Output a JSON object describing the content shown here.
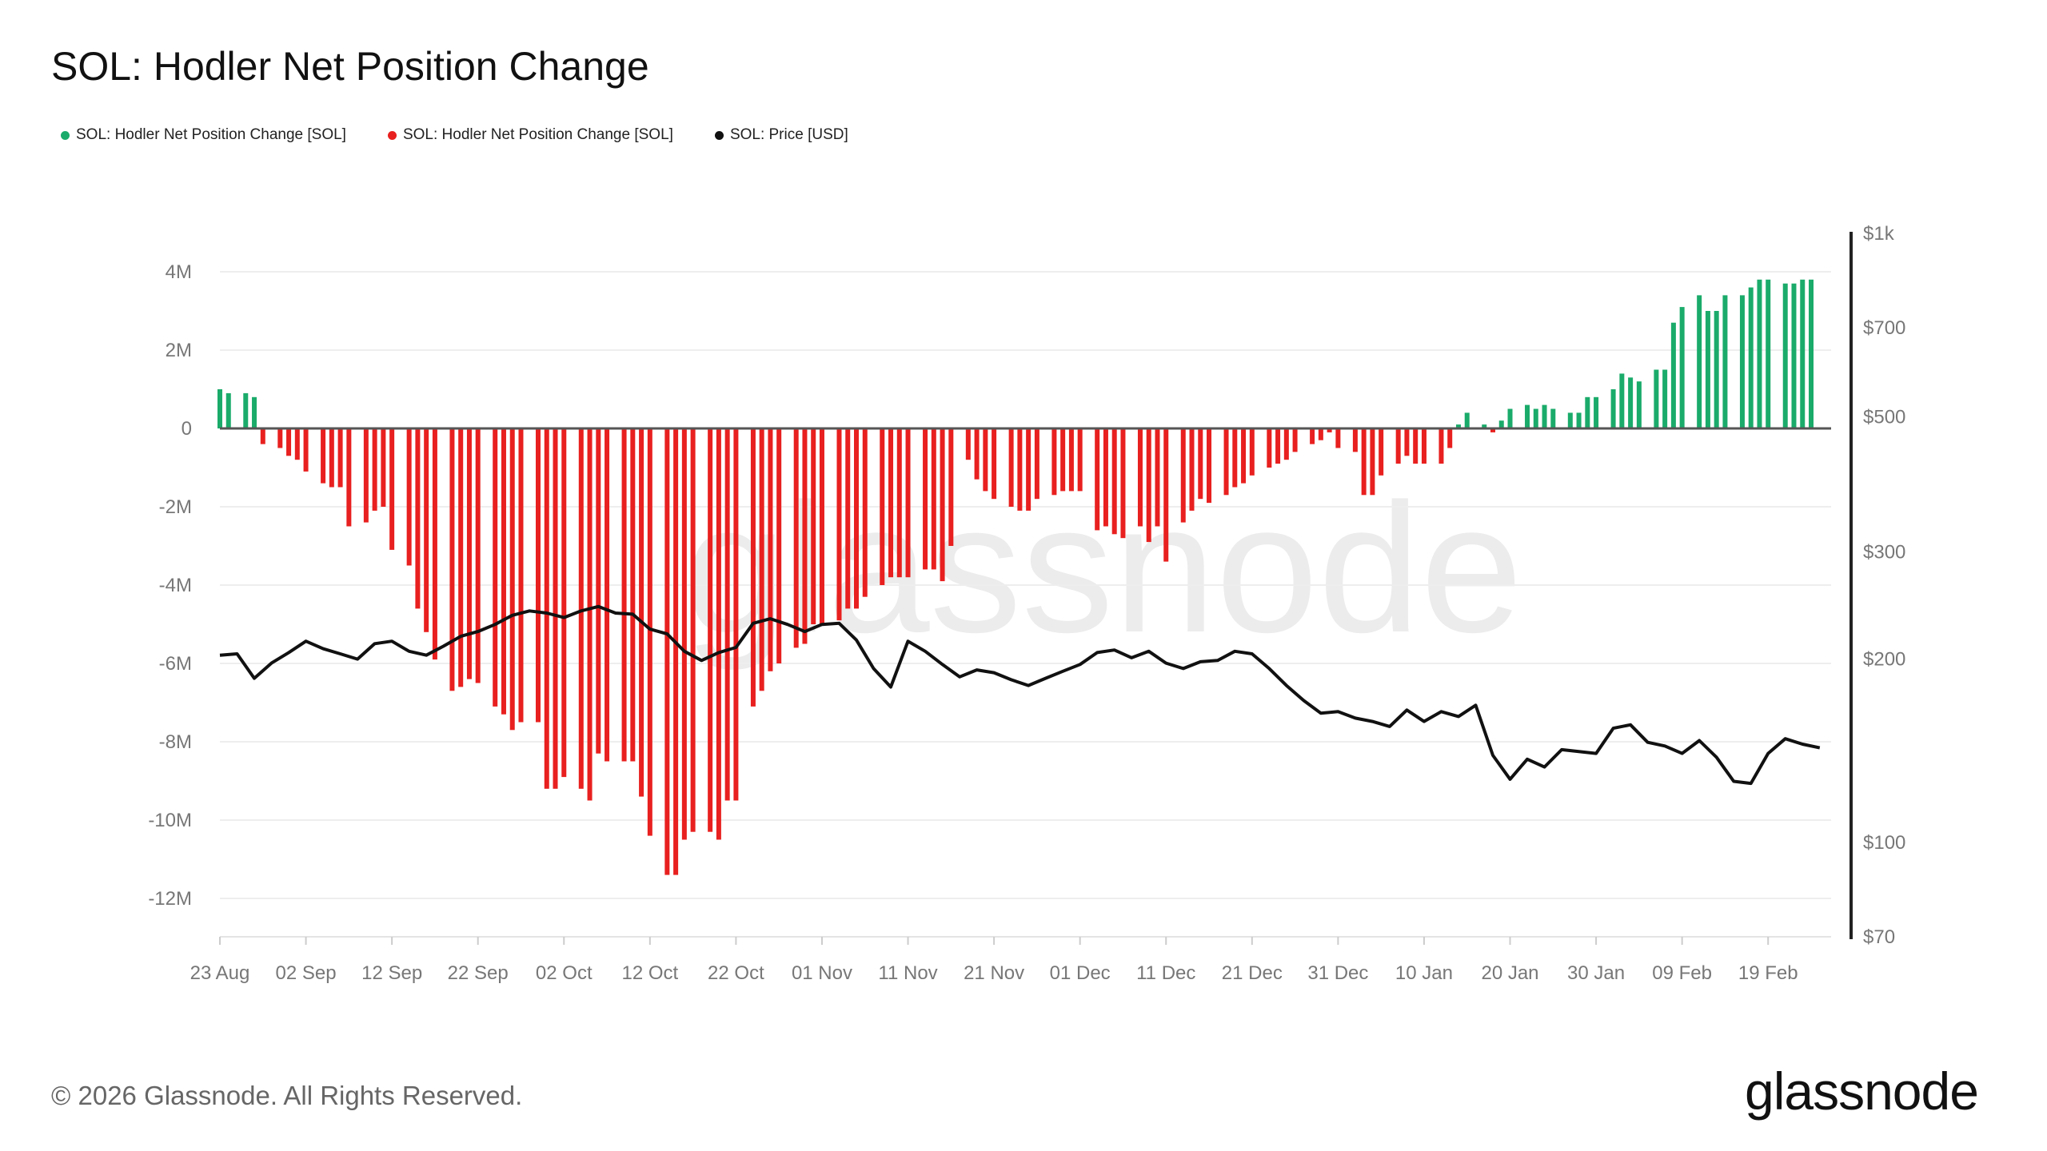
{
  "title": "SOL: Hodler Net Position Change",
  "legend": [
    {
      "label": "SOL: Hodler Net Position Change [SOL]",
      "color": "#1aab6a"
    },
    {
      "label": "SOL: Hodler Net Position Change [SOL]",
      "color": "#e8201f"
    },
    {
      "label": "SOL: Price [USD]",
      "color": "#111111"
    }
  ],
  "watermark": "glassnode",
  "footer": {
    "copyright": "© 2026 Glassnode. All Rights Reserved.",
    "brand": "glassnode"
  },
  "chart_data": {
    "type": "bar",
    "title": "SOL: Hodler Net Position Change",
    "x_start": "23 Aug",
    "x_end": "24 Feb",
    "x_tick_labels": [
      "23 Aug",
      "02 Sep",
      "12 Sep",
      "22 Sep",
      "02 Oct",
      "12 Oct",
      "22 Oct",
      "01 Nov",
      "11 Nov",
      "21 Nov",
      "01 Dec",
      "11 Dec",
      "21 Dec",
      "31 Dec",
      "10 Jan",
      "20 Jan",
      "30 Jan",
      "09 Feb",
      "19 Feb"
    ],
    "left_axis": {
      "label": "",
      "ylim": [
        -13000000,
        4000000
      ],
      "ticks": [
        4000000,
        2000000,
        0,
        -2000000,
        -4000000,
        -6000000,
        -8000000,
        -10000000,
        -12000000
      ],
      "tick_labels": [
        "4M",
        "2M",
        "0",
        "-2M",
        "-4M",
        "-6M",
        "-8M",
        "-10M",
        "-12M"
      ]
    },
    "right_axis": {
      "label": "",
      "scale": "log",
      "ylim": [
        70,
        1000
      ],
      "ticks": [
        1000,
        700,
        500,
        300,
        200,
        100,
        70
      ],
      "tick_labels": [
        "$1k",
        "$700",
        "$500",
        "$300",
        "$200",
        "$100",
        "$70"
      ]
    },
    "positive_color": "#1aab6a",
    "negative_color": "#e8201f",
    "price_color": "#111111",
    "grid": true,
    "series": [
      {
        "name": "SOL: Hodler Net Position Change [SOL]",
        "axis": "left",
        "points": [
          [
            "23 Aug",
            1000000
          ],
          [
            "24 Aug",
            900000
          ],
          [
            "26 Aug",
            900000
          ],
          [
            "27 Aug",
            800000
          ],
          [
            "28 Aug",
            -400000
          ],
          [
            "30 Aug",
            -500000
          ],
          [
            "31 Aug",
            -700000
          ],
          [
            "01 Sep",
            -800000
          ],
          [
            "02 Sep",
            -1100000
          ],
          [
            "04 Sep",
            -1400000
          ],
          [
            "05 Sep",
            -1500000
          ],
          [
            "06 Sep",
            -1500000
          ],
          [
            "07 Sep",
            -2500000
          ],
          [
            "09 Sep",
            -2400000
          ],
          [
            "10 Sep",
            -2100000
          ],
          [
            "11 Sep",
            -2000000
          ],
          [
            "12 Sep",
            -3100000
          ],
          [
            "14 Sep",
            -3500000
          ],
          [
            "15 Sep",
            -4600000
          ],
          [
            "16 Sep",
            -5200000
          ],
          [
            "17 Sep",
            -5900000
          ],
          [
            "19 Sep",
            -6700000
          ],
          [
            "20 Sep",
            -6600000
          ],
          [
            "21 Sep",
            -6400000
          ],
          [
            "22 Sep",
            -6500000
          ],
          [
            "24 Sep",
            -7100000
          ],
          [
            "25 Sep",
            -7300000
          ],
          [
            "26 Sep",
            -7700000
          ],
          [
            "27 Sep",
            -7500000
          ],
          [
            "29 Sep",
            -7500000
          ],
          [
            "30 Sep",
            -9200000
          ],
          [
            "01 Oct",
            -9200000
          ],
          [
            "02 Oct",
            -8900000
          ],
          [
            "04 Oct",
            -9200000
          ],
          [
            "05 Oct",
            -9500000
          ],
          [
            "06 Oct",
            -8300000
          ],
          [
            "07 Oct",
            -8500000
          ],
          [
            "09 Oct",
            -8500000
          ],
          [
            "10 Oct",
            -8500000
          ],
          [
            "11 Oct",
            -9400000
          ],
          [
            "12 Oct",
            -10400000
          ],
          [
            "14 Oct",
            -11400000
          ],
          [
            "15 Oct",
            -11400000
          ],
          [
            "16 Oct",
            -10500000
          ],
          [
            "17 Oct",
            -10300000
          ],
          [
            "19 Oct",
            -10300000
          ],
          [
            "20 Oct",
            -10500000
          ],
          [
            "21 Oct",
            -9500000
          ],
          [
            "22 Oct",
            -9500000
          ],
          [
            "24 Oct",
            -7100000
          ],
          [
            "25 Oct",
            -6700000
          ],
          [
            "26 Oct",
            -6200000
          ],
          [
            "27 Oct",
            -6000000
          ],
          [
            "29 Oct",
            -5600000
          ],
          [
            "30 Oct",
            -5500000
          ],
          [
            "31 Oct",
            -5000000
          ],
          [
            "01 Nov",
            -5000000
          ],
          [
            "03 Nov",
            -4900000
          ],
          [
            "04 Nov",
            -4600000
          ],
          [
            "05 Nov",
            -4600000
          ],
          [
            "06 Nov",
            -4300000
          ],
          [
            "08 Nov",
            -4000000
          ],
          [
            "09 Nov",
            -3800000
          ],
          [
            "10 Nov",
            -3800000
          ],
          [
            "11 Nov",
            -3800000
          ],
          [
            "13 Nov",
            -3600000
          ],
          [
            "14 Nov",
            -3600000
          ],
          [
            "15 Nov",
            -3900000
          ],
          [
            "16 Nov",
            -3000000
          ],
          [
            "18 Nov",
            -800000
          ],
          [
            "19 Nov",
            -1300000
          ],
          [
            "20 Nov",
            -1600000
          ],
          [
            "21 Nov",
            -1800000
          ],
          [
            "23 Nov",
            -2000000
          ],
          [
            "24 Nov",
            -2100000
          ],
          [
            "25 Nov",
            -2100000
          ],
          [
            "26 Nov",
            -1800000
          ],
          [
            "28 Nov",
            -1700000
          ],
          [
            "29 Nov",
            -1600000
          ],
          [
            "30 Nov",
            -1600000
          ],
          [
            "01 Dec",
            -1600000
          ],
          [
            "03 Dec",
            -2600000
          ],
          [
            "04 Dec",
            -2500000
          ],
          [
            "05 Dec",
            -2700000
          ],
          [
            "06 Dec",
            -2800000
          ],
          [
            "08 Dec",
            -2500000
          ],
          [
            "09 Dec",
            -2900000
          ],
          [
            "10 Dec",
            -2500000
          ],
          [
            "11 Dec",
            -3400000
          ],
          [
            "13 Dec",
            -2400000
          ],
          [
            "14 Dec",
            -2100000
          ],
          [
            "15 Dec",
            -1800000
          ],
          [
            "16 Dec",
            -1900000
          ],
          [
            "18 Dec",
            -1700000
          ],
          [
            "19 Dec",
            -1500000
          ],
          [
            "20 Dec",
            -1400000
          ],
          [
            "21 Dec",
            -1200000
          ],
          [
            "23 Dec",
            -1000000
          ],
          [
            "24 Dec",
            -900000
          ],
          [
            "25 Dec",
            -800000
          ],
          [
            "26 Dec",
            -600000
          ],
          [
            "28 Dec",
            -400000
          ],
          [
            "29 Dec",
            -300000
          ],
          [
            "30 Dec",
            -100000
          ],
          [
            "31 Dec",
            -500000
          ],
          [
            "02 Jan",
            -600000
          ],
          [
            "03 Jan",
            -1700000
          ],
          [
            "04 Jan",
            -1700000
          ],
          [
            "05 Jan",
            -1200000
          ],
          [
            "07 Jan",
            -900000
          ],
          [
            "08 Jan",
            -700000
          ],
          [
            "09 Jan",
            -900000
          ],
          [
            "10 Jan",
            -900000
          ],
          [
            "12 Jan",
            -900000
          ],
          [
            "13 Jan",
            -500000
          ],
          [
            "14 Jan",
            100000
          ],
          [
            "15 Jan",
            400000
          ],
          [
            "17 Jan",
            100000
          ],
          [
            "18 Jan",
            -100000
          ],
          [
            "19 Jan",
            200000
          ],
          [
            "20 Jan",
            500000
          ],
          [
            "22 Jan",
            600000
          ],
          [
            "23 Jan",
            500000
          ],
          [
            "24 Jan",
            600000
          ],
          [
            "25 Jan",
            500000
          ],
          [
            "27 Jan",
            400000
          ],
          [
            "28 Jan",
            400000
          ],
          [
            "29 Jan",
            800000
          ],
          [
            "30 Jan",
            800000
          ],
          [
            "01 Feb",
            1000000
          ],
          [
            "02 Feb",
            1400000
          ],
          [
            "03 Feb",
            1300000
          ],
          [
            "04 Feb",
            1200000
          ],
          [
            "06 Feb",
            1500000
          ],
          [
            "07 Feb",
            1500000
          ],
          [
            "08 Feb",
            2700000
          ],
          [
            "09 Feb",
            3100000
          ],
          [
            "11 Feb",
            3400000
          ],
          [
            "12 Feb",
            3000000
          ],
          [
            "13 Feb",
            3000000
          ],
          [
            "14 Feb",
            3400000
          ],
          [
            "16 Feb",
            3400000
          ],
          [
            "17 Feb",
            3600000
          ],
          [
            "18 Feb",
            3800000
          ],
          [
            "19 Feb",
            3800000
          ],
          [
            "21 Feb",
            3700000
          ],
          [
            "22 Feb",
            3700000
          ],
          [
            "23 Feb",
            3800000
          ],
          [
            "24 Feb",
            3800000
          ]
        ]
      },
      {
        "name": "SOL: Price [USD]",
        "axis": "right",
        "points": [
          [
            "23 Aug",
            203
          ],
          [
            "25 Aug",
            204
          ],
          [
            "27 Aug",
            186
          ],
          [
            "29 Aug",
            197
          ],
          [
            "31 Aug",
            205
          ],
          [
            "02 Sep",
            214
          ],
          [
            "04 Sep",
            208
          ],
          [
            "06 Sep",
            204
          ],
          [
            "08 Sep",
            200
          ],
          [
            "10 Sep",
            212
          ],
          [
            "12 Sep",
            214
          ],
          [
            "14 Sep",
            206
          ],
          [
            "16 Sep",
            203
          ],
          [
            "18 Sep",
            210
          ],
          [
            "20 Sep",
            218
          ],
          [
            "22 Sep",
            222
          ],
          [
            "24 Sep",
            228
          ],
          [
            "26 Sep",
            236
          ],
          [
            "28 Sep",
            240
          ],
          [
            "30 Sep",
            238
          ],
          [
            "02 Oct",
            234
          ],
          [
            "04 Oct",
            240
          ],
          [
            "06 Oct",
            244
          ],
          [
            "08 Oct",
            238
          ],
          [
            "10 Oct",
            237
          ],
          [
            "12 Oct",
            224
          ],
          [
            "14 Oct",
            220
          ],
          [
            "16 Oct",
            206
          ],
          [
            "18 Oct",
            199
          ],
          [
            "20 Oct",
            205
          ],
          [
            "22 Oct",
            209
          ],
          [
            "24 Oct",
            229
          ],
          [
            "26 Oct",
            233
          ],
          [
            "28 Oct",
            228
          ],
          [
            "30 Oct",
            222
          ],
          [
            "01 Nov",
            228
          ],
          [
            "03 Nov",
            229
          ],
          [
            "05 Nov",
            215
          ],
          [
            "07 Nov",
            193
          ],
          [
            "09 Nov",
            180
          ],
          [
            "11 Nov",
            214
          ],
          [
            "13 Nov",
            206
          ],
          [
            "15 Nov",
            196
          ],
          [
            "17 Nov",
            187
          ],
          [
            "19 Nov",
            192
          ],
          [
            "21 Nov",
            190
          ],
          [
            "23 Nov",
            185
          ],
          [
            "25 Nov",
            181
          ],
          [
            "27 Nov",
            186
          ],
          [
            "29 Nov",
            191
          ],
          [
            "01 Dec",
            196
          ],
          [
            "03 Dec",
            205
          ],
          [
            "05 Dec",
            207
          ],
          [
            "07 Dec",
            201
          ],
          [
            "09 Dec",
            206
          ],
          [
            "11 Dec",
            197
          ],
          [
            "13 Dec",
            193
          ],
          [
            "15 Dec",
            198
          ],
          [
            "17 Dec",
            199
          ],
          [
            "19 Dec",
            206
          ],
          [
            "21 Dec",
            204
          ],
          [
            "23 Dec",
            193
          ],
          [
            "25 Dec",
            181
          ],
          [
            "27 Dec",
            171
          ],
          [
            "29 Dec",
            163
          ],
          [
            "31 Dec",
            164
          ],
          [
            "02 Jan",
            160
          ],
          [
            "04 Jan",
            158
          ],
          [
            "06 Jan",
            155
          ],
          [
            "08 Jan",
            165
          ],
          [
            "10 Jan",
            158
          ],
          [
            "12 Jan",
            164
          ],
          [
            "14 Jan",
            161
          ],
          [
            "16 Jan",
            168
          ],
          [
            "18 Jan",
            139
          ],
          [
            "20 Jan",
            127
          ],
          [
            "22 Jan",
            137
          ],
          [
            "24 Jan",
            133
          ],
          [
            "26 Jan",
            142
          ],
          [
            "28 Jan",
            141
          ],
          [
            "30 Jan",
            140
          ],
          [
            "01 Feb",
            154
          ],
          [
            "03 Feb",
            156
          ],
          [
            "05 Feb",
            146
          ],
          [
            "07 Feb",
            144
          ],
          [
            "09 Feb",
            140
          ],
          [
            "11 Feb",
            147
          ],
          [
            "13 Feb",
            138
          ],
          [
            "15 Feb",
            126
          ],
          [
            "17 Feb",
            125
          ],
          [
            "19 Feb",
            140
          ],
          [
            "21 Feb",
            148
          ],
          [
            "23 Feb",
            145
          ],
          [
            "25 Feb",
            143
          ]
        ]
      }
    ]
  }
}
